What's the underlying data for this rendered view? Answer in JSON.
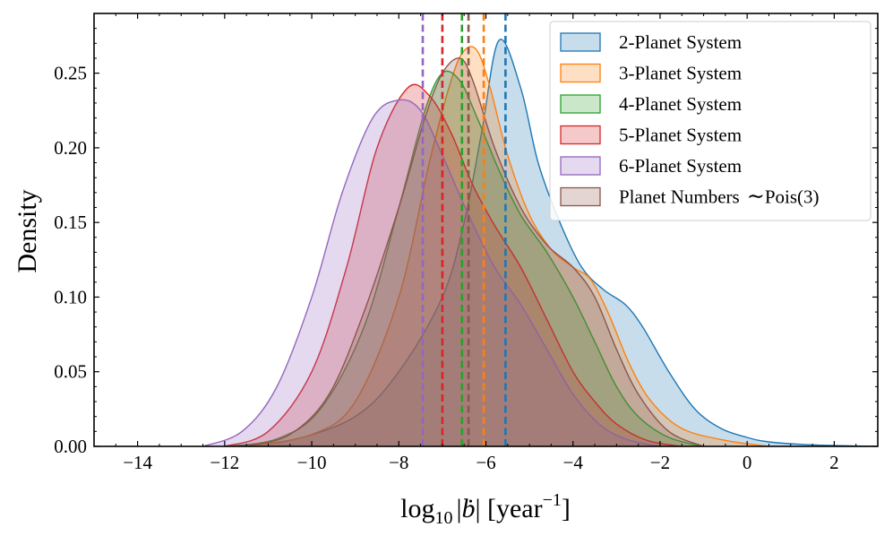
{
  "chart_data": {
    "type": "area",
    "title": "",
    "xlabel": "log10 |ḃ| [year^-1]",
    "xlabel_parts": {
      "prefix": "log",
      "sub": "10",
      "b": "ḃ",
      "open": " [year",
      "sup": "−1",
      "close": "]"
    },
    "ylabel": "Density",
    "xlim": [
      -15,
      3
    ],
    "ylim": [
      0,
      0.29
    ],
    "xticks": [
      -14,
      -12,
      -10,
      -8,
      -6,
      -4,
      -2,
      0,
      2
    ],
    "xtick_labels": [
      "−14",
      "−12",
      "−10",
      "−8",
      "−6",
      "−4",
      "−2",
      "0",
      "2"
    ],
    "yticks": [
      0.0,
      0.05,
      0.1,
      0.15,
      0.2,
      0.25
    ],
    "ytick_labels": [
      "0.00",
      "0.05",
      "0.10",
      "0.15",
      "0.20",
      "0.25"
    ],
    "legend_position": "top-right",
    "series": [
      {
        "name": "2-Planet System",
        "label": "2-Planet System",
        "color": "#1f77b4",
        "mean": -5.55,
        "x": [
          -12,
          -10.5,
          -9,
          -8,
          -7,
          -6.5,
          -6.1,
          -5.7,
          -5.2,
          -4.8,
          -4.3,
          -3.8,
          -3.3,
          -2.8,
          -2.4,
          -1.8,
          -1.2,
          -0.6,
          0,
          0.5,
          1.5,
          3
        ],
        "y": [
          0.0,
          0.004,
          0.02,
          0.05,
          0.1,
          0.15,
          0.21,
          0.272,
          0.24,
          0.19,
          0.15,
          0.12,
          0.105,
          0.095,
          0.08,
          0.05,
          0.025,
          0.012,
          0.006,
          0.003,
          0.001,
          0.0
        ]
      },
      {
        "name": "3-Planet System",
        "label": "3-Planet System",
        "color": "#ff7f0e",
        "mean": -6.05,
        "x": [
          -11.5,
          -10,
          -9,
          -8,
          -7.3,
          -6.8,
          -6.5,
          -6.2,
          -5.9,
          -5.5,
          -5,
          -4.5,
          -4,
          -3.6,
          -3.2,
          -2.7,
          -2.2,
          -1.5,
          -0.5,
          0.5
        ],
        "y": [
          0.0,
          0.008,
          0.03,
          0.1,
          0.19,
          0.245,
          0.265,
          0.265,
          0.24,
          0.195,
          0.155,
          0.132,
          0.12,
          0.112,
          0.09,
          0.055,
          0.03,
          0.012,
          0.004,
          0.0
        ]
      },
      {
        "name": "4-Planet System",
        "label": "4-Planet System",
        "color": "#2ca02c",
        "mean": -6.55,
        "x": [
          -12,
          -10.8,
          -9.8,
          -8.8,
          -8,
          -7.4,
          -7,
          -6.6,
          -6.2,
          -5.7,
          -5.2,
          -4.6,
          -4,
          -3.5,
          -3,
          -2.5,
          -1.8,
          -1
        ],
        "y": [
          0.0,
          0.005,
          0.025,
          0.08,
          0.16,
          0.225,
          0.25,
          0.245,
          0.22,
          0.185,
          0.155,
          0.13,
          0.1,
          0.07,
          0.04,
          0.02,
          0.006,
          0.0
        ]
      },
      {
        "name": "5-Planet System",
        "label": "5-Planet System",
        "color": "#d62728",
        "mean": -7.0,
        "x": [
          -12,
          -11,
          -10,
          -9.2,
          -8.5,
          -7.8,
          -7.3,
          -6.8,
          -6.3,
          -5.8,
          -5.2,
          -4.6,
          -4,
          -3.5,
          -3,
          -2.3,
          -1.5
        ],
        "y": [
          0.0,
          0.01,
          0.05,
          0.12,
          0.2,
          0.24,
          0.235,
          0.21,
          0.175,
          0.148,
          0.12,
          0.085,
          0.05,
          0.03,
          0.015,
          0.004,
          0.0
        ]
      },
      {
        "name": "6-Planet System",
        "label": "6-Planet System",
        "color": "#9467bd",
        "mean": -7.45,
        "x": [
          -12.5,
          -11.6,
          -10.8,
          -10,
          -9.3,
          -8.6,
          -8,
          -7.5,
          -7,
          -6.4,
          -5.8,
          -5.2,
          -4.6,
          -4,
          -3.4,
          -2.8,
          -2
        ],
        "y": [
          0.0,
          0.01,
          0.04,
          0.1,
          0.17,
          0.22,
          0.232,
          0.225,
          0.195,
          0.155,
          0.12,
          0.095,
          0.065,
          0.035,
          0.015,
          0.005,
          0.0
        ]
      },
      {
        "name": "Planet Numbers ~ Pois(3)",
        "label": "Planet Numbers",
        "label_sym": "∼",
        "label_suffix": "Pois(3)",
        "color": "#8c564b",
        "mean": -6.4,
        "x": [
          -11.5,
          -10.5,
          -9.6,
          -8.8,
          -8,
          -7.4,
          -7,
          -6.6,
          -6.3,
          -5.8,
          -5.2,
          -4.6,
          -4,
          -3.5,
          -3,
          -2.5,
          -1.8,
          -1
        ],
        "y": [
          0.0,
          0.008,
          0.035,
          0.09,
          0.16,
          0.22,
          0.25,
          0.26,
          0.245,
          0.2,
          0.16,
          0.135,
          0.12,
          0.1,
          0.065,
          0.035,
          0.01,
          0.0
        ]
      }
    ]
  }
}
